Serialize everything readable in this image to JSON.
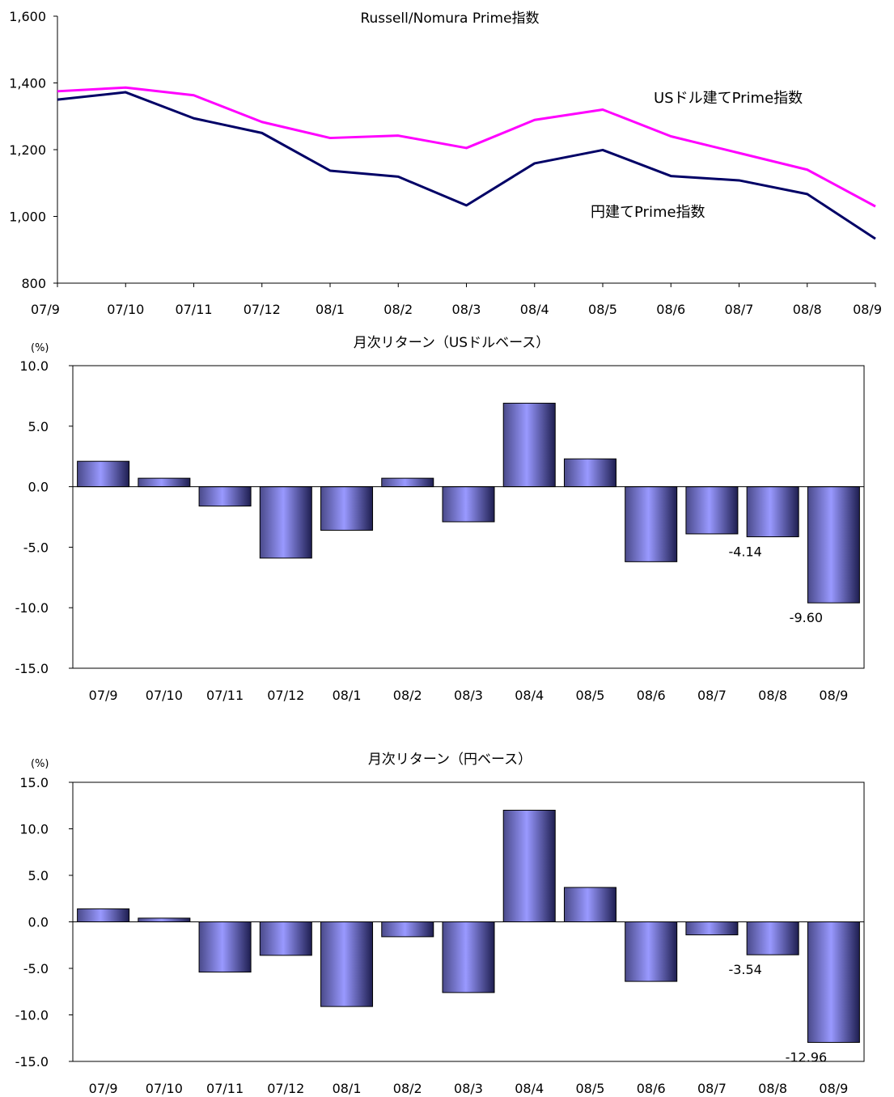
{
  "chart_data": [
    {
      "type": "line",
      "title": "Russell/Nomura Prime指数",
      "categories": [
        "07/9",
        "07/10",
        "07/11",
        "07/12",
        "08/1",
        "08/2",
        "08/3",
        "08/4",
        "08/5",
        "08/6",
        "08/7",
        "08/8",
        "08/9"
      ],
      "ylim": [
        800,
        1600
      ],
      "yticks": [
        "800",
        "1,000",
        "1,200",
        "1,400",
        "1,600"
      ],
      "grid": false,
      "series": [
        {
          "name": "USドル建てPrime指数",
          "color": "#ff00ff",
          "values": [
            1375,
            1386,
            1363,
            1283,
            1235,
            1242,
            1205,
            1289,
            1320,
            1240,
            1190,
            1140,
            1030
          ]
        },
        {
          "name": "円建てPrime指数",
          "color": "#000066",
          "values": [
            1350,
            1372,
            1294,
            1250,
            1137,
            1119,
            1033,
            1159,
            1199,
            1121,
            1108,
            1067,
            933
          ]
        }
      ]
    },
    {
      "type": "bar",
      "title": "月次リターン（USドルベース）",
      "unit": "(%)",
      "categories": [
        "07/9",
        "07/10",
        "07/11",
        "07/12",
        "08/1",
        "08/2",
        "08/3",
        "08/4",
        "08/5",
        "08/6",
        "08/7",
        "08/8",
        "08/9"
      ],
      "values": [
        2.1,
        0.7,
        -1.6,
        -5.9,
        -3.6,
        0.7,
        -2.9,
        6.9,
        2.3,
        -6.2,
        -3.9,
        -4.14,
        -9.6
      ],
      "data_labels": [
        null,
        null,
        null,
        null,
        null,
        null,
        null,
        null,
        null,
        null,
        null,
        "-4.14",
        "-9.60"
      ],
      "ylim": [
        -15,
        10
      ],
      "yticks": [
        "10.0",
        "5.0",
        "0.0",
        "-5.0",
        "-10.0",
        "-15.0"
      ],
      "bar_color": "#9999ff"
    },
    {
      "type": "bar",
      "title": "月次リターン（円ベース）",
      "unit": "(%)",
      "categories": [
        "07/9",
        "07/10",
        "07/11",
        "07/12",
        "08/1",
        "08/2",
        "08/3",
        "08/4",
        "08/5",
        "08/6",
        "08/7",
        "08/8",
        "08/9"
      ],
      "values": [
        1.4,
        0.4,
        -5.4,
        -3.6,
        -9.1,
        -1.6,
        -7.6,
        12.0,
        3.7,
        -6.4,
        -1.4,
        -3.54,
        -12.96
      ],
      "data_labels": [
        null,
        null,
        null,
        null,
        null,
        null,
        null,
        null,
        null,
        null,
        null,
        "-3.54",
        "-12.96"
      ],
      "ylim": [
        -15,
        15
      ],
      "yticks": [
        "15.0",
        "10.0",
        "5.0",
        "0.0",
        "-5.0",
        "-10.0",
        "-15.0"
      ],
      "bar_color": "#9999ff"
    }
  ]
}
